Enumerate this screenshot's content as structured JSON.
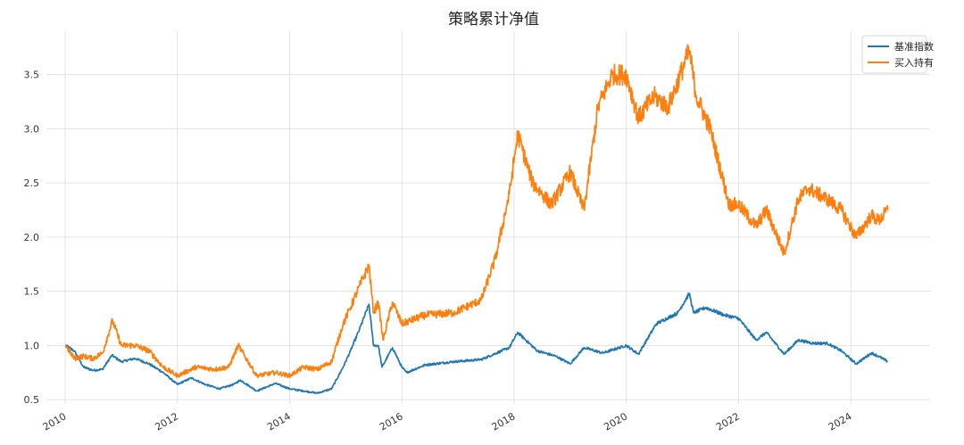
{
  "chart_data": {
    "type": "line",
    "title": "策略累计净值",
    "xlabel": "",
    "ylabel": "",
    "x_ticks": [
      "2010",
      "2012",
      "2014",
      "2016",
      "2018",
      "2020",
      "2022",
      "2024"
    ],
    "y_ticks": [
      "0.5",
      "1.0",
      "1.5",
      "2.0",
      "2.5",
      "3.0",
      "3.5"
    ],
    "xlim": [
      "2009-09-01",
      "2025-06-01"
    ],
    "ylim": [
      0.46,
      3.9
    ],
    "grid": true,
    "legend_position": "top-right",
    "series": [
      {
        "name": "基准指数",
        "color": "#1f77b4",
        "points": [
          [
            "2010-01-04",
            1.0
          ],
          [
            "2010-03-01",
            0.95
          ],
          [
            "2010-05-01",
            0.8
          ],
          [
            "2010-07-01",
            0.77
          ],
          [
            "2010-09-01",
            0.78
          ],
          [
            "2010-11-01",
            0.91
          ],
          [
            "2011-01-01",
            0.85
          ],
          [
            "2011-04-01",
            0.88
          ],
          [
            "2011-07-01",
            0.83
          ],
          [
            "2011-10-01",
            0.75
          ],
          [
            "2012-01-01",
            0.64
          ],
          [
            "2012-04-01",
            0.7
          ],
          [
            "2012-07-01",
            0.64
          ],
          [
            "2012-10-01",
            0.6
          ],
          [
            "2013-01-01",
            0.64
          ],
          [
            "2013-02-15",
            0.68
          ],
          [
            "2013-06-01",
            0.58
          ],
          [
            "2013-10-01",
            0.65
          ],
          [
            "2014-01-01",
            0.6
          ],
          [
            "2014-04-01",
            0.58
          ],
          [
            "2014-07-01",
            0.56
          ],
          [
            "2014-10-01",
            0.6
          ],
          [
            "2014-12-15",
            0.8
          ],
          [
            "2015-02-01",
            0.95
          ],
          [
            "2015-04-01",
            1.15
          ],
          [
            "2015-06-01",
            1.38
          ],
          [
            "2015-07-01",
            1.0
          ],
          [
            "2015-08-01",
            1.0
          ],
          [
            "2015-08-25",
            0.8
          ],
          [
            "2015-11-01",
            0.98
          ],
          [
            "2016-01-01",
            0.8
          ],
          [
            "2016-02-01",
            0.75
          ],
          [
            "2016-06-01",
            0.82
          ],
          [
            "2016-12-01",
            0.85
          ],
          [
            "2017-06-01",
            0.87
          ],
          [
            "2017-12-01",
            0.98
          ],
          [
            "2018-01-25",
            1.12
          ],
          [
            "2018-06-01",
            0.95
          ],
          [
            "2018-10-01",
            0.9
          ],
          [
            "2019-01-01",
            0.83
          ],
          [
            "2019-04-01",
            0.98
          ],
          [
            "2019-08-01",
            0.93
          ],
          [
            "2020-01-01",
            1.0
          ],
          [
            "2020-03-20",
            0.92
          ],
          [
            "2020-07-15",
            1.2
          ],
          [
            "2020-12-01",
            1.3
          ],
          [
            "2021-02-15",
            1.48
          ],
          [
            "2021-03-15",
            1.3
          ],
          [
            "2021-06-01",
            1.35
          ],
          [
            "2021-10-01",
            1.28
          ],
          [
            "2022-01-01",
            1.25
          ],
          [
            "2022-04-25",
            1.05
          ],
          [
            "2022-07-01",
            1.12
          ],
          [
            "2022-10-25",
            0.92
          ],
          [
            "2023-01-25",
            1.05
          ],
          [
            "2023-05-01",
            1.02
          ],
          [
            "2023-08-01",
            1.02
          ],
          [
            "2023-11-01",
            0.95
          ],
          [
            "2024-02-05",
            0.83
          ],
          [
            "2024-05-15",
            0.93
          ],
          [
            "2024-07-01",
            0.9
          ],
          [
            "2024-08-30",
            0.85
          ]
        ]
      },
      {
        "name": "买入持有",
        "color": "#ff7f0e",
        "points": [
          [
            "2010-01-04",
            1.0
          ],
          [
            "2010-03-01",
            0.88
          ],
          [
            "2010-05-01",
            0.9
          ],
          [
            "2010-07-01",
            0.88
          ],
          [
            "2010-09-01",
            0.93
          ],
          [
            "2010-11-05",
            1.23
          ],
          [
            "2011-01-01",
            1.0
          ],
          [
            "2011-04-01",
            1.0
          ],
          [
            "2011-07-01",
            0.95
          ],
          [
            "2011-10-01",
            0.8
          ],
          [
            "2012-01-01",
            0.72
          ],
          [
            "2012-05-01",
            0.8
          ],
          [
            "2012-09-01",
            0.78
          ],
          [
            "2012-12-01",
            0.8
          ],
          [
            "2013-02-01",
            1.0
          ],
          [
            "2013-06-01",
            0.72
          ],
          [
            "2013-10-01",
            0.75
          ],
          [
            "2014-01-01",
            0.72
          ],
          [
            "2014-04-01",
            0.8
          ],
          [
            "2014-07-01",
            0.78
          ],
          [
            "2014-10-01",
            0.85
          ],
          [
            "2014-12-15",
            1.2
          ],
          [
            "2015-02-01",
            1.35
          ],
          [
            "2015-04-01",
            1.55
          ],
          [
            "2015-06-01",
            1.74
          ],
          [
            "2015-07-01",
            1.3
          ],
          [
            "2015-08-01",
            1.4
          ],
          [
            "2015-09-01",
            1.05
          ],
          [
            "2015-11-01",
            1.4
          ],
          [
            "2016-01-01",
            1.2
          ],
          [
            "2016-06-01",
            1.28
          ],
          [
            "2016-12-01",
            1.3
          ],
          [
            "2017-06-01",
            1.42
          ],
          [
            "2017-09-01",
            1.8
          ],
          [
            "2017-12-01",
            2.4
          ],
          [
            "2018-01-25",
            2.95
          ],
          [
            "2018-05-01",
            2.5
          ],
          [
            "2018-09-01",
            2.3
          ],
          [
            "2019-01-01",
            2.6
          ],
          [
            "2019-04-01",
            2.25
          ],
          [
            "2019-07-01",
            3.2
          ],
          [
            "2019-10-01",
            3.5
          ],
          [
            "2020-01-01",
            3.5
          ],
          [
            "2020-03-20",
            3.1
          ],
          [
            "2020-07-01",
            3.3
          ],
          [
            "2020-10-01",
            3.2
          ],
          [
            "2021-02-15",
            3.72
          ],
          [
            "2021-04-01",
            3.3
          ],
          [
            "2021-07-01",
            3.0
          ],
          [
            "2021-11-01",
            2.3
          ],
          [
            "2022-01-01",
            2.3
          ],
          [
            "2022-04-25",
            2.1
          ],
          [
            "2022-07-01",
            2.25
          ],
          [
            "2022-10-25",
            1.85
          ],
          [
            "2023-01-25",
            2.35
          ],
          [
            "2023-04-01",
            2.45
          ],
          [
            "2023-08-01",
            2.35
          ],
          [
            "2023-11-01",
            2.25
          ],
          [
            "2024-02-05",
            2.0
          ],
          [
            "2024-05-15",
            2.2
          ],
          [
            "2024-07-01",
            2.15
          ],
          [
            "2024-08-30",
            2.25
          ]
        ]
      }
    ]
  }
}
